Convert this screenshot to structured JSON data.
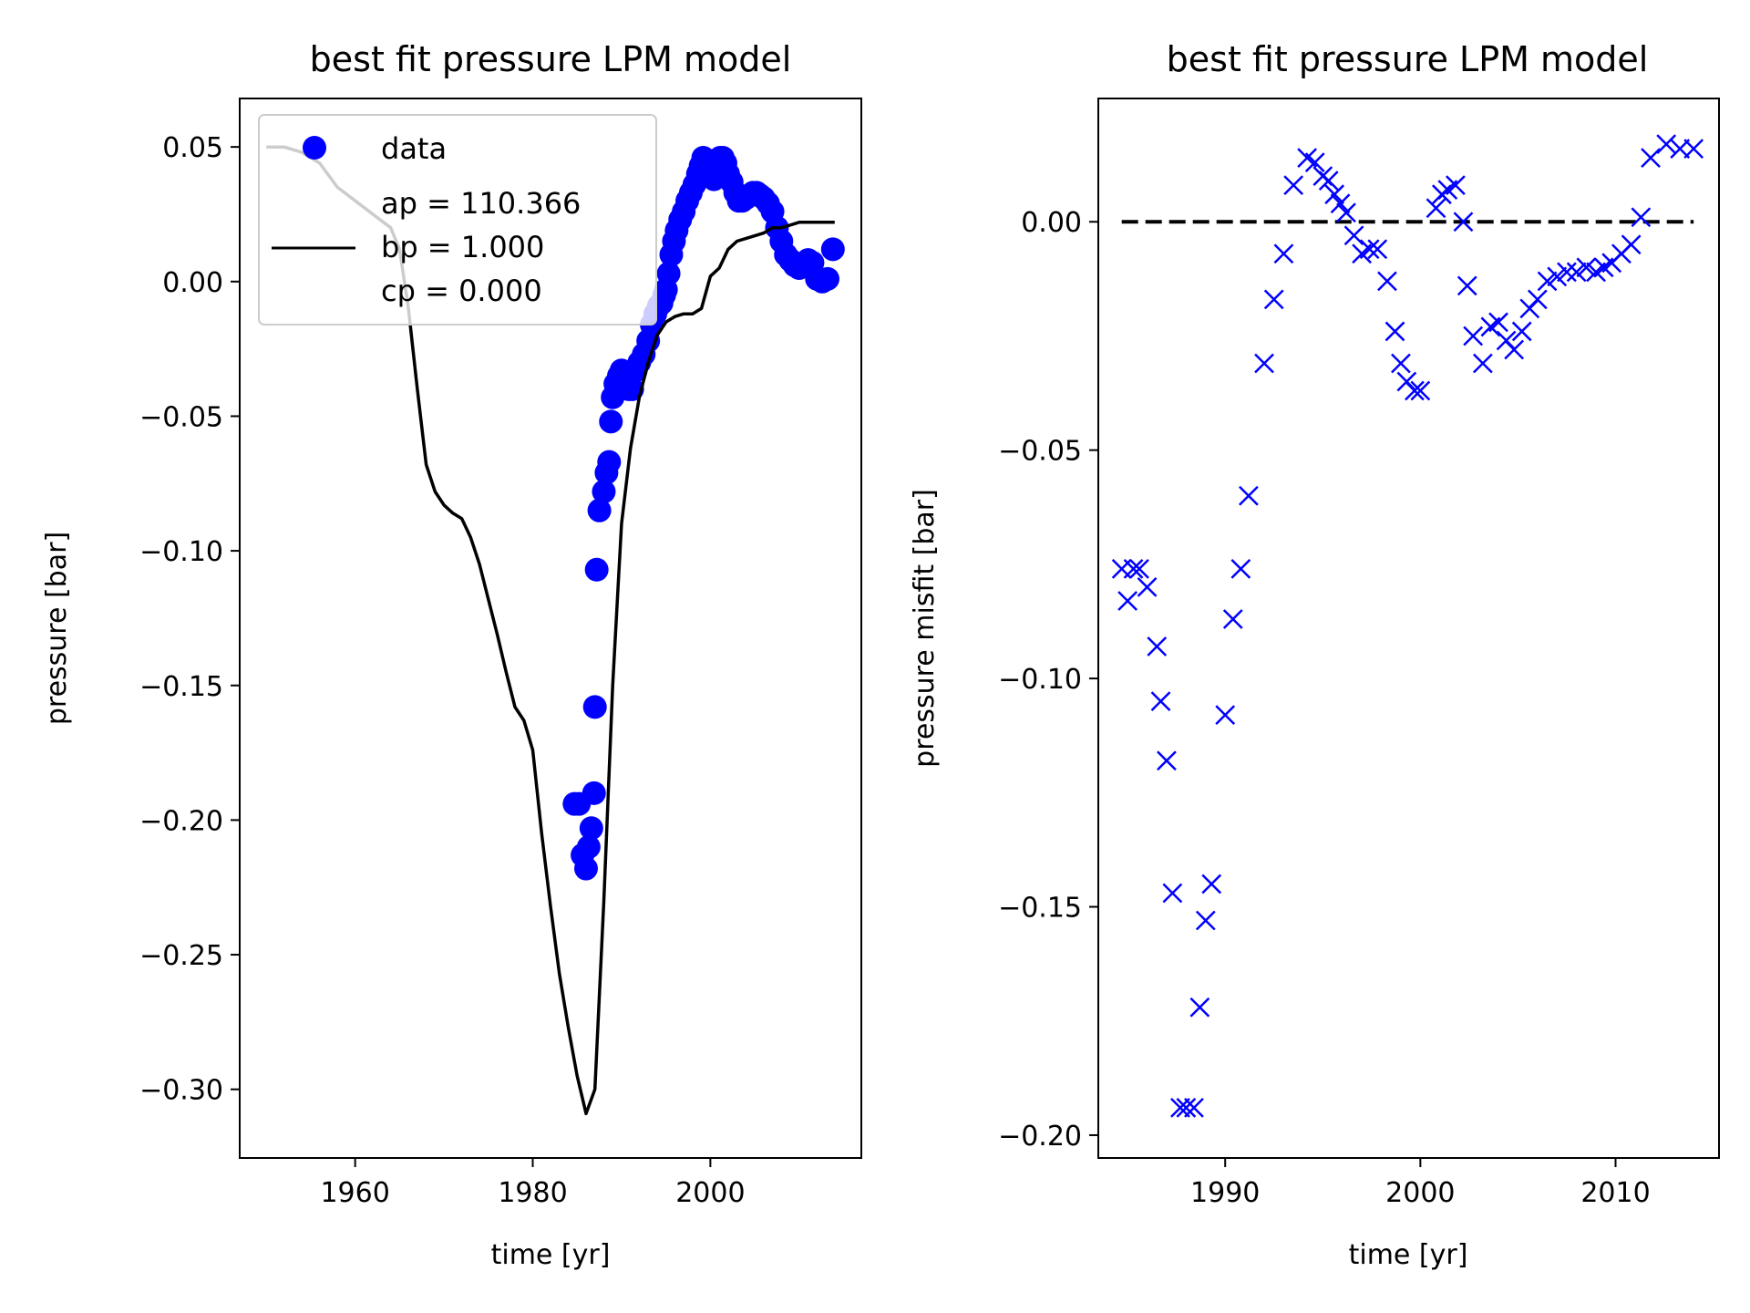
{
  "chart_data": [
    {
      "type": "line",
      "title": "best fit pressure LPM model",
      "xlabel": "time [yr]",
      "ylabel": "pressure [bar]",
      "xlim": [
        1947,
        2017
      ],
      "ylim": [
        -0.3255,
        0.068
      ],
      "xticks": [
        1960,
        1980,
        2000
      ],
      "xtick_labels": [
        "1960",
        "1980",
        "2000"
      ],
      "yticks": [
        0.05,
        0.0,
        -0.05,
        -0.1,
        -0.15,
        -0.2,
        -0.25,
        -0.3
      ],
      "ytick_labels": [
        "0.05",
        "0.00",
        "−0.05",
        "−0.10",
        "−0.15",
        "−0.20",
        "−0.25",
        "−0.30"
      ],
      "grid": false,
      "legend": {
        "placement": "top-left",
        "entries": [
          "data",
          "ap = 110.366",
          "bp = 1.000",
          "cp = 0.000"
        ]
      },
      "series": [
        {
          "name": "data",
          "kind": "scatter",
          "marker": "circle",
          "color": "#0000ff",
          "x": [
            1984.7,
            1985.2,
            1985.6,
            1986.0,
            1986.3,
            1986.6,
            1986.9,
            1987.0,
            1987.2,
            1987.5,
            1988.0,
            1988.3,
            1988.6,
            1988.8,
            1989.0,
            1989.3,
            1989.7,
            1990.0,
            1990.4,
            1990.8,
            1991.2,
            1991.6,
            1992.0,
            1992.5,
            1993.0,
            1993.4,
            1993.8,
            1994.2,
            1994.5,
            1994.8,
            1995.0,
            1995.3,
            1995.6,
            1995.9,
            1996.2,
            1996.6,
            1997.0,
            1997.4,
            1997.8,
            1998.2,
            1998.6,
            1998.9,
            1999.2,
            1999.6,
            2000.0,
            2000.4,
            2000.8,
            2001.1,
            2001.4,
            2001.7,
            2002.0,
            2002.4,
            2002.8,
            2003.2,
            2003.6,
            2004.0,
            2004.4,
            2004.8,
            2005.2,
            2005.6,
            2006.0,
            2006.5,
            2007.0,
            2007.5,
            2008.0,
            2008.5,
            2009.0,
            2009.5,
            2010.0,
            2010.5,
            2011.0,
            2011.5,
            2012.0,
            2012.6,
            2013.2,
            2013.8
          ],
          "y": [
            -0.194,
            -0.194,
            -0.213,
            -0.218,
            -0.21,
            -0.203,
            -0.19,
            -0.158,
            -0.107,
            -0.085,
            -0.078,
            -0.071,
            -0.067,
            -0.052,
            -0.043,
            -0.038,
            -0.035,
            -0.033,
            -0.035,
            -0.04,
            -0.04,
            -0.033,
            -0.03,
            -0.027,
            -0.022,
            -0.016,
            -0.012,
            -0.009,
            -0.008,
            -0.005,
            -0.003,
            0.003,
            0.01,
            0.015,
            0.019,
            0.023,
            0.026,
            0.03,
            0.033,
            0.036,
            0.04,
            0.043,
            0.046,
            0.045,
            0.041,
            0.038,
            0.04,
            0.046,
            0.046,
            0.044,
            0.04,
            0.037,
            0.033,
            0.03,
            0.03,
            0.031,
            0.032,
            0.033,
            0.033,
            0.032,
            0.031,
            0.029,
            0.026,
            0.02,
            0.015,
            0.01,
            0.008,
            0.006,
            0.005,
            0.006,
            0.008,
            0.007,
            0.001,
            0.0,
            0.001,
            0.012
          ],
          "x_sorted_note": ""
        },
        {
          "name": "",
          "kind": "line",
          "color": "#000000",
          "x": [
            1950,
            1952,
            1954,
            1956,
            1958,
            1960,
            1962,
            1964,
            1965,
            1966,
            1967,
            1968,
            1969,
            1970,
            1971,
            1972,
            1973,
            1974,
            1975,
            1976,
            1977,
            1978,
            1979,
            1980,
            1981,
            1982,
            1983,
            1984,
            1985,
            1986,
            1987,
            1988,
            1989,
            1990,
            1991,
            1992,
            1993,
            1994,
            1995,
            1996,
            1997,
            1998,
            1999,
            2000,
            2001,
            2002,
            2003,
            2004,
            2005,
            2006,
            2007,
            2008,
            2009,
            2010,
            2011,
            2012,
            2013,
            2014
          ],
          "y": [
            0.05,
            0.05,
            0.048,
            0.044,
            0.035,
            0.03,
            0.025,
            0.02,
            0.012,
            -0.01,
            -0.04,
            -0.068,
            -0.078,
            -0.083,
            -0.086,
            -0.088,
            -0.095,
            -0.105,
            -0.118,
            -0.131,
            -0.145,
            -0.158,
            -0.163,
            -0.174,
            -0.205,
            -0.232,
            -0.257,
            -0.277,
            -0.295,
            -0.309,
            -0.3,
            -0.23,
            -0.15,
            -0.09,
            -0.062,
            -0.043,
            -0.03,
            -0.02,
            -0.015,
            -0.013,
            -0.012,
            -0.012,
            -0.01,
            0.002,
            0.005,
            0.012,
            0.015,
            0.016,
            0.017,
            0.018,
            0.02,
            0.02,
            0.021,
            0.022,
            0.022,
            0.022,
            0.022,
            0.022
          ]
        }
      ]
    },
    {
      "type": "scatter",
      "title": "best fit pressure LPM model",
      "xlabel": "time [yr]",
      "ylabel": "pressure misfit [bar]",
      "xlim": [
        1983.5,
        2015.3
      ],
      "ylim": [
        -0.205,
        0.027
      ],
      "xticks": [
        1990,
        2000,
        2010
      ],
      "xtick_labels": [
        "1990",
        "2000",
        "2010"
      ],
      "yticks": [
        0.0,
        -0.05,
        -0.1,
        -0.15,
        -0.2
      ],
      "ytick_labels": [
        "0.00",
        "−0.05",
        "−0.10",
        "−0.15",
        "−0.20"
      ],
      "grid": false,
      "reference_line": {
        "y": 0.0,
        "x": [
          1984.7,
          2014.0
        ],
        "style": "dashed",
        "color": "#000000"
      },
      "series": [
        {
          "name": "",
          "kind": "scatter",
          "marker": "x",
          "color": "#0000ff",
          "x": [
            1984.7,
            1985.0,
            1985.3,
            1985.6,
            1986.0,
            1986.5,
            1986.7,
            1987.0,
            1987.3,
            1987.7,
            1988.0,
            1988.4,
            1988.7,
            1989.0,
            1989.3,
            1990.0,
            1990.4,
            1990.8,
            1991.2,
            1992.0,
            1992.5,
            1993.0,
            1993.5,
            1994.2,
            1994.6,
            1995.0,
            1995.3,
            1995.6,
            1995.9,
            1996.2,
            1996.6,
            1997.0,
            1997.4,
            1997.8,
            1998.3,
            1998.7,
            1999.0,
            1999.3,
            1999.7,
            2000.0,
            2000.8,
            2001.1,
            2001.4,
            2001.8,
            2002.2,
            2002.4,
            2002.7,
            2003.2,
            2003.6,
            2004.0,
            2004.4,
            2004.8,
            2005.2,
            2005.6,
            2006.0,
            2006.5,
            2007.0,
            2007.5,
            2008.0,
            2008.5,
            2009.0,
            2009.4,
            2009.8,
            2010.3,
            2010.8,
            2011.3,
            2011.8,
            2012.6,
            2013.3,
            2014.0
          ],
          "y": [
            -0.076,
            -0.083,
            -0.076,
            -0.076,
            -0.08,
            -0.093,
            -0.105,
            -0.118,
            -0.147,
            -0.194,
            -0.194,
            -0.194,
            -0.172,
            -0.153,
            -0.145,
            -0.108,
            -0.087,
            -0.076,
            -0.06,
            -0.031,
            -0.017,
            -0.007,
            0.008,
            0.014,
            0.013,
            0.01,
            0.009,
            0.006,
            0.004,
            0.002,
            -0.003,
            -0.007,
            -0.006,
            -0.006,
            -0.013,
            -0.024,
            -0.031,
            -0.035,
            -0.037,
            -0.037,
            0.003,
            0.006,
            0.007,
            0.008,
            0.0,
            -0.014,
            -0.025,
            -0.031,
            -0.023,
            -0.022,
            -0.026,
            -0.028,
            -0.024,
            -0.019,
            -0.017,
            -0.013,
            -0.012,
            -0.011,
            -0.011,
            -0.01,
            -0.011,
            -0.01,
            -0.009,
            -0.007,
            -0.005,
            0.001,
            0.014,
            0.017,
            0.016,
            0.016
          ]
        }
      ]
    }
  ]
}
